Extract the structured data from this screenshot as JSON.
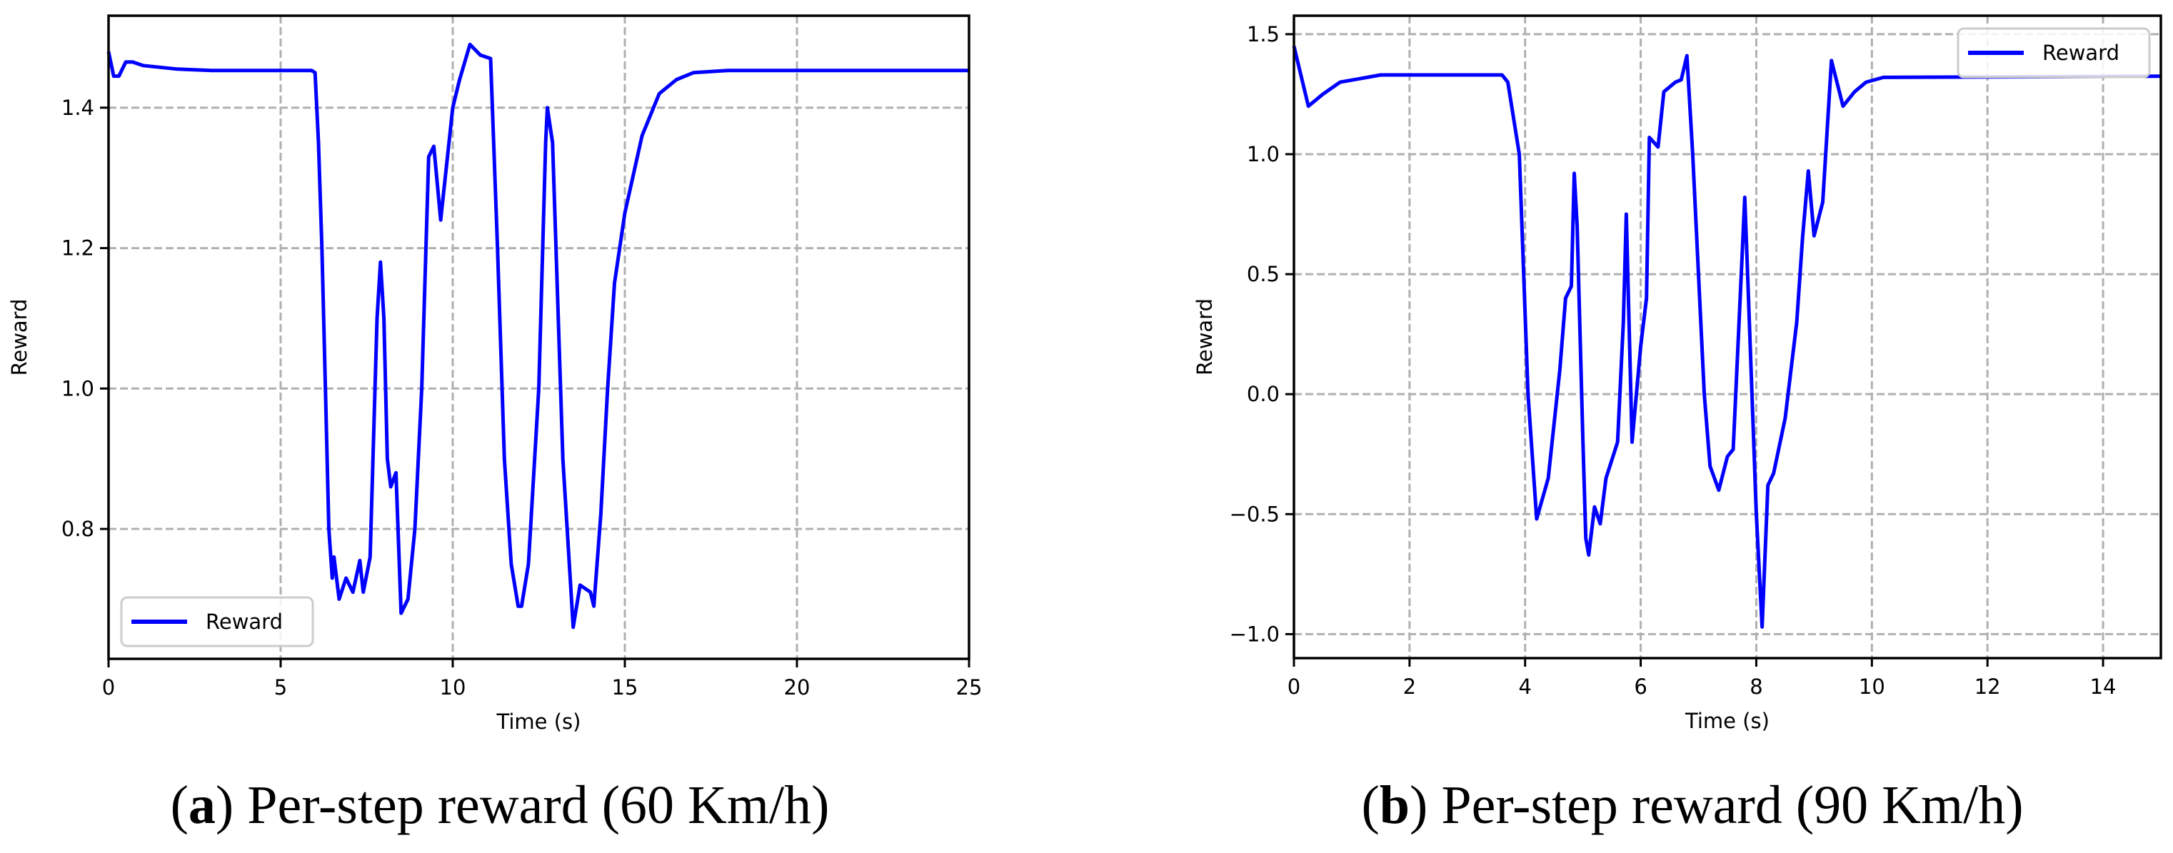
{
  "chart_data": [
    {
      "type": "line",
      "panel": "a",
      "caption_letter": "a",
      "caption_text": "Per-step reward (60 Km/h)",
      "title": "",
      "xlabel": "Time (s)",
      "ylabel": "Reward",
      "xlim": [
        0,
        25
      ],
      "ylim": [
        0.615,
        1.531
      ],
      "xticks": [
        0,
        5,
        10,
        15,
        20,
        25
      ],
      "yticks": [
        0.8,
        1.0,
        1.2,
        1.4
      ],
      "ytick_labels": [
        "0.8",
        "1.0",
        "1.2",
        "1.4"
      ],
      "grid": true,
      "legend": {
        "entries": [
          "Reward"
        ],
        "position": "lower left"
      },
      "series": [
        {
          "name": "Reward",
          "color": "#0000ff",
          "x": [
            0,
            0.15,
            0.3,
            0.5,
            0.7,
            1,
            2,
            3,
            5.9,
            6.0,
            6.1,
            6.2,
            6.3,
            6.4,
            6.5,
            6.55,
            6.7,
            6.9,
            7.1,
            7.3,
            7.4,
            7.6,
            7.8,
            7.9,
            8.0,
            8.1,
            8.2,
            8.35,
            8.5,
            8.7,
            8.9,
            9.1,
            9.3,
            9.45,
            9.65,
            10,
            10.2,
            10.5,
            10.8,
            11.1,
            11.3,
            11.5,
            11.7,
            11.9,
            12.0,
            12.2,
            12.5,
            12.7,
            12.75,
            12.9,
            13.0,
            13.2,
            13.5,
            13.7,
            14.0,
            14.1,
            14.3,
            14.5,
            14.7,
            15,
            15.5,
            16,
            16.5,
            17,
            18,
            25
          ],
          "y": [
            1.48,
            1.445,
            1.445,
            1.465,
            1.465,
            1.46,
            1.455,
            1.453,
            1.453,
            1.45,
            1.35,
            1.2,
            1.0,
            0.8,
            0.73,
            0.76,
            0.7,
            0.73,
            0.71,
            0.755,
            0.71,
            0.76,
            1.1,
            1.18,
            1.1,
            0.9,
            0.86,
            0.88,
            0.68,
            0.7,
            0.8,
            1.0,
            1.33,
            1.345,
            1.24,
            1.4,
            1.44,
            1.49,
            1.475,
            1.47,
            1.2,
            0.9,
            0.75,
            0.69,
            0.69,
            0.75,
            1.0,
            1.35,
            1.4,
            1.35,
            1.2,
            0.9,
            0.66,
            0.72,
            0.71,
            0.69,
            0.82,
            1.0,
            1.15,
            1.25,
            1.36,
            1.42,
            1.44,
            1.45,
            1.453,
            1.453
          ]
        }
      ]
    },
    {
      "type": "line",
      "panel": "b",
      "caption_letter": "b",
      "caption_text": "Per-step reward (90 Km/h)",
      "title": "",
      "xlabel": "Time (s)",
      "ylabel": "Reward",
      "xlim": [
        0,
        15
      ],
      "ylim": [
        -1.1,
        1.577
      ],
      "xticks": [
        0,
        2,
        4,
        6,
        8,
        10,
        12,
        14
      ],
      "yticks": [
        -1.0,
        -0.5,
        0.0,
        0.5,
        1.0,
        1.5
      ],
      "ytick_labels": [
        "−1.0",
        "−0.5",
        "0.0",
        "0.5",
        "1.0",
        "1.5"
      ],
      "grid": true,
      "legend": {
        "entries": [
          "Reward"
        ],
        "position": "upper right"
      },
      "series": [
        {
          "name": "Reward",
          "color": "#0000ff",
          "x": [
            0,
            0.25,
            0.5,
            0.8,
            1.5,
            3.6,
            3.7,
            3.9,
            4.05,
            4.2,
            4.4,
            4.6,
            4.7,
            4.8,
            4.85,
            4.9,
            5.0,
            5.05,
            5.1,
            5.2,
            5.3,
            5.4,
            5.6,
            5.7,
            5.75,
            5.85,
            6.0,
            6.1,
            6.15,
            6.3,
            6.4,
            6.6,
            6.7,
            6.8,
            6.9,
            7.1,
            7.2,
            7.35,
            7.5,
            7.6,
            7.75,
            7.8,
            7.85,
            8.0,
            8.1,
            8.2,
            8.3,
            8.5,
            8.7,
            8.8,
            8.9,
            9.0,
            9.15,
            9.3,
            9.5,
            9.7,
            9.9,
            10.2,
            15
          ],
          "y": [
            1.45,
            1.2,
            1.25,
            1.3,
            1.33,
            1.33,
            1.3,
            1.0,
            0.0,
            -0.52,
            -0.35,
            0.1,
            0.4,
            0.45,
            0.92,
            0.7,
            -0.2,
            -0.6,
            -0.67,
            -0.47,
            -0.54,
            -0.35,
            -0.2,
            0.3,
            0.75,
            -0.2,
            0.2,
            0.4,
            1.07,
            1.03,
            1.26,
            1.3,
            1.31,
            1.41,
            1.0,
            0.0,
            -0.3,
            -0.4,
            -0.26,
            -0.23,
            0.55,
            0.82,
            0.5,
            -0.5,
            -0.97,
            -0.38,
            -0.33,
            -0.1,
            0.3,
            0.65,
            0.93,
            0.66,
            0.8,
            1.39,
            1.2,
            1.26,
            1.3,
            1.32,
            1.325
          ]
        }
      ]
    }
  ],
  "captions": {
    "a": {
      "letter": "a",
      "text": "Per-step reward (60 Km/h)"
    },
    "b": {
      "letter": "b",
      "text": "Per-step reward (90 Km/h)"
    }
  }
}
